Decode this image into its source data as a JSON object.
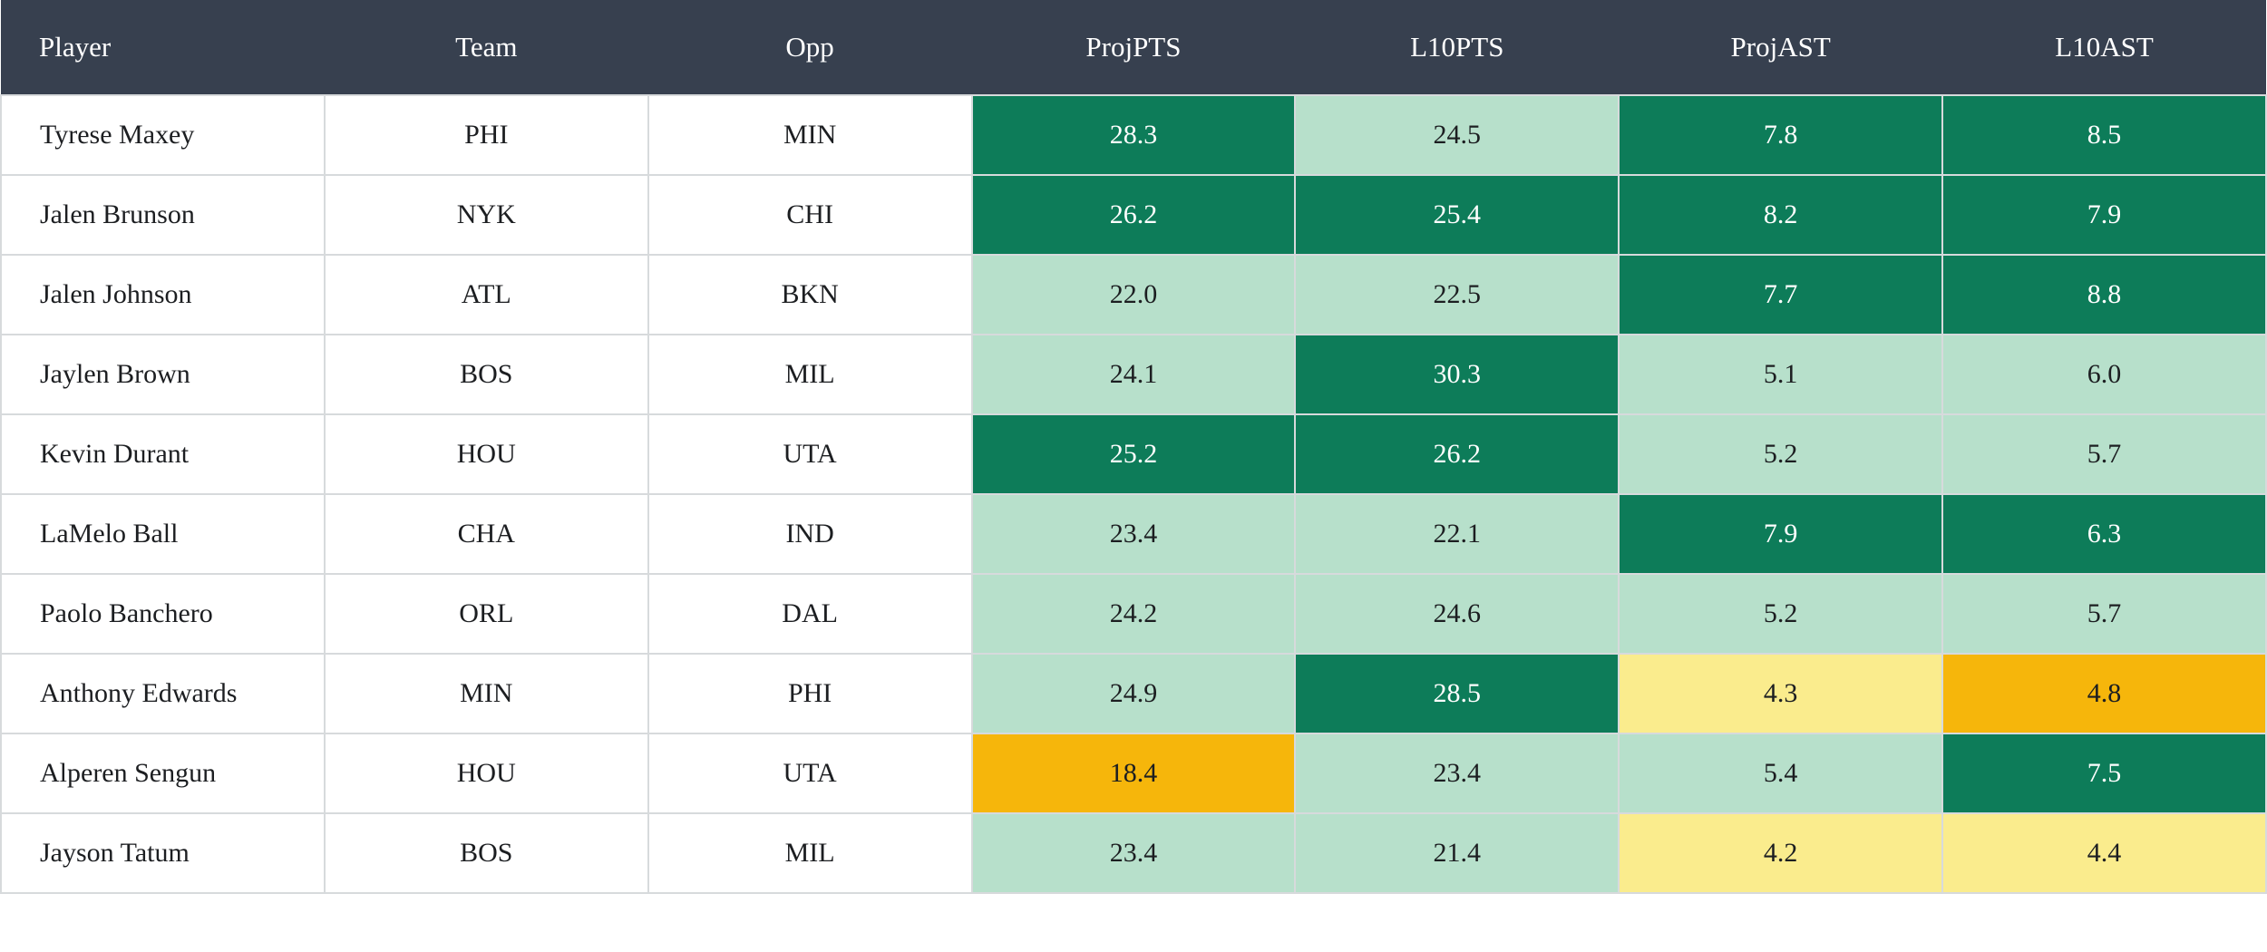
{
  "colors": {
    "header_bg": "#37404F",
    "header_text": "#FFFFFF",
    "dark_green": "#0D7C59",
    "light_green": "#B7E0CB",
    "pale_yellow": "#FAEC8D",
    "amber": "#F6B60B",
    "grid": "#D7DADC",
    "text_dark": "#1C1E21",
    "text_light": "#FFFFFF"
  },
  "table": {
    "columns": [
      {
        "key": "player",
        "label": "Player"
      },
      {
        "key": "team",
        "label": "Team"
      },
      {
        "key": "opp",
        "label": "Opp"
      },
      {
        "key": "projpts",
        "label": "ProjPTS"
      },
      {
        "key": "l10pts",
        "label": "L10PTS"
      },
      {
        "key": "projast",
        "label": "ProjAST"
      },
      {
        "key": "l10ast",
        "label": "L10AST"
      }
    ],
    "rows": [
      {
        "player": "Tyrese Maxey",
        "team": "PHI",
        "opp": "MIN",
        "stats": [
          {
            "value": "28.3",
            "tone": "dark-green"
          },
          {
            "value": "24.5",
            "tone": "light-green"
          },
          {
            "value": "7.8",
            "tone": "dark-green"
          },
          {
            "value": "8.5",
            "tone": "dark-green"
          }
        ]
      },
      {
        "player": "Jalen Brunson",
        "team": "NYK",
        "opp": "CHI",
        "stats": [
          {
            "value": "26.2",
            "tone": "dark-green"
          },
          {
            "value": "25.4",
            "tone": "dark-green"
          },
          {
            "value": "8.2",
            "tone": "dark-green"
          },
          {
            "value": "7.9",
            "tone": "dark-green"
          }
        ]
      },
      {
        "player": "Jalen Johnson",
        "team": "ATL",
        "opp": "BKN",
        "stats": [
          {
            "value": "22.0",
            "tone": "light-green"
          },
          {
            "value": "22.5",
            "tone": "light-green"
          },
          {
            "value": "7.7",
            "tone": "dark-green"
          },
          {
            "value": "8.8",
            "tone": "dark-green"
          }
        ]
      },
      {
        "player": "Jaylen Brown",
        "team": "BOS",
        "opp": "MIL",
        "stats": [
          {
            "value": "24.1",
            "tone": "light-green"
          },
          {
            "value": "30.3",
            "tone": "dark-green"
          },
          {
            "value": "5.1",
            "tone": "light-green"
          },
          {
            "value": "6.0",
            "tone": "light-green"
          }
        ]
      },
      {
        "player": "Kevin Durant",
        "team": "HOU",
        "opp": "UTA",
        "stats": [
          {
            "value": "25.2",
            "tone": "dark-green"
          },
          {
            "value": "26.2",
            "tone": "dark-green"
          },
          {
            "value": "5.2",
            "tone": "light-green"
          },
          {
            "value": "5.7",
            "tone": "light-green"
          }
        ]
      },
      {
        "player": "LaMelo Ball",
        "team": "CHA",
        "opp": "IND",
        "stats": [
          {
            "value": "23.4",
            "tone": "light-green"
          },
          {
            "value": "22.1",
            "tone": "light-green"
          },
          {
            "value": "7.9",
            "tone": "dark-green"
          },
          {
            "value": "6.3",
            "tone": "dark-green"
          }
        ]
      },
      {
        "player": "Paolo Banchero",
        "team": "ORL",
        "opp": "DAL",
        "stats": [
          {
            "value": "24.2",
            "tone": "light-green"
          },
          {
            "value": "24.6",
            "tone": "light-green"
          },
          {
            "value": "5.2",
            "tone": "light-green"
          },
          {
            "value": "5.7",
            "tone": "light-green"
          }
        ]
      },
      {
        "player": "Anthony Edwards",
        "team": "MIN",
        "opp": "PHI",
        "stats": [
          {
            "value": "24.9",
            "tone": "light-green"
          },
          {
            "value": "28.5",
            "tone": "dark-green"
          },
          {
            "value": "4.3",
            "tone": "pale-yellow"
          },
          {
            "value": "4.8",
            "tone": "amber"
          }
        ]
      },
      {
        "player": "Alperen Sengun",
        "team": "HOU",
        "opp": "UTA",
        "stats": [
          {
            "value": "18.4",
            "tone": "amber"
          },
          {
            "value": "23.4",
            "tone": "light-green"
          },
          {
            "value": "5.4",
            "tone": "light-green"
          },
          {
            "value": "7.5",
            "tone": "dark-green"
          }
        ]
      },
      {
        "player": "Jayson Tatum",
        "team": "BOS",
        "opp": "MIL",
        "stats": [
          {
            "value": "23.4",
            "tone": "light-green"
          },
          {
            "value": "21.4",
            "tone": "light-green"
          },
          {
            "value": "4.2",
            "tone": "pale-yellow"
          },
          {
            "value": "4.4",
            "tone": "pale-yellow"
          }
        ]
      }
    ]
  }
}
